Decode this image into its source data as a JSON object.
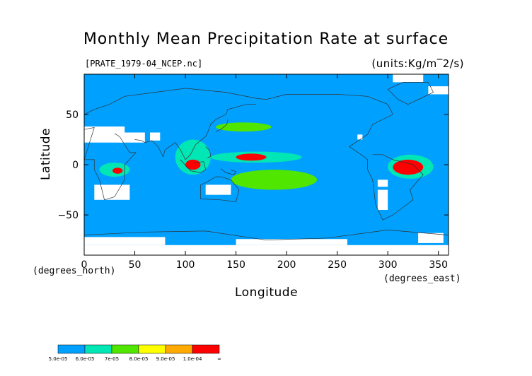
{
  "chart_data": {
    "type": "heatmap",
    "title": "Monthly Mean Precipitation Rate at surface",
    "subtitle_file": "[PRATE_1979-04_NCEP.nc]",
    "units": "(units:Kg/m‾2/s)",
    "xlabel": "Longitude",
    "ylabel": "Latitude",
    "x_unit_label": "(degrees_east)",
    "y_unit_label": "(degrees_north)",
    "xlim": [
      0,
      360
    ],
    "ylim": [
      -90,
      90
    ],
    "x_ticks": [
      0,
      50,
      100,
      150,
      200,
      250,
      300,
      350
    ],
    "y_ticks": [
      -50,
      0,
      50
    ],
    "x_tick_labels": [
      "0",
      "50",
      "100",
      "150",
      "200",
      "250",
      "300",
      "350"
    ],
    "y_tick_labels": [
      "−50",
      "0",
      "50"
    ],
    "background_value_color": "#00a0ff",
    "missing_color": "#ffffff",
    "colorbar": {
      "levels": [
        "5.0e-05",
        "6.0e-05",
        "7e-05",
        "8.0e-05",
        "9.0e-05",
        "1.0e-04",
        "∞"
      ],
      "colors": [
        "#00a0ff",
        "#00e6b4",
        "#50e600",
        "#ffff00",
        "#ffaa00",
        "#ff0000"
      ]
    },
    "regions": [
      {
        "value_class": 1,
        "lon": [
          300,
          345
        ],
        "lat": [
          -14,
          10
        ]
      },
      {
        "value_class": 5,
        "lon": [
          305,
          335
        ],
        "lat": [
          -10,
          5
        ]
      },
      {
        "value_class": 1,
        "lon": [
          125,
          215
        ],
        "lat": [
          2,
          13
        ]
      },
      {
        "value_class": 5,
        "lon": [
          150,
          180
        ],
        "lat": [
          4,
          11
        ]
      },
      {
        "value_class": 1,
        "lon": [
          90,
          125
        ],
        "lat": [
          -10,
          25
        ]
      },
      {
        "value_class": 5,
        "lon": [
          100,
          115
        ],
        "lat": [
          -5,
          5
        ]
      },
      {
        "value_class": 1,
        "lon": [
          15,
          45
        ],
        "lat": [
          -12,
          2
        ]
      },
      {
        "value_class": 5,
        "lon": [
          28,
          38
        ],
        "lat": [
          -9,
          -3
        ]
      },
      {
        "value_class": 2,
        "lon": [
          130,
          185
        ],
        "lat": [
          33,
          42
        ]
      },
      {
        "value_class": 2,
        "lon": [
          145,
          230
        ],
        "lat": [
          -25,
          -5
        ]
      }
    ]
  }
}
